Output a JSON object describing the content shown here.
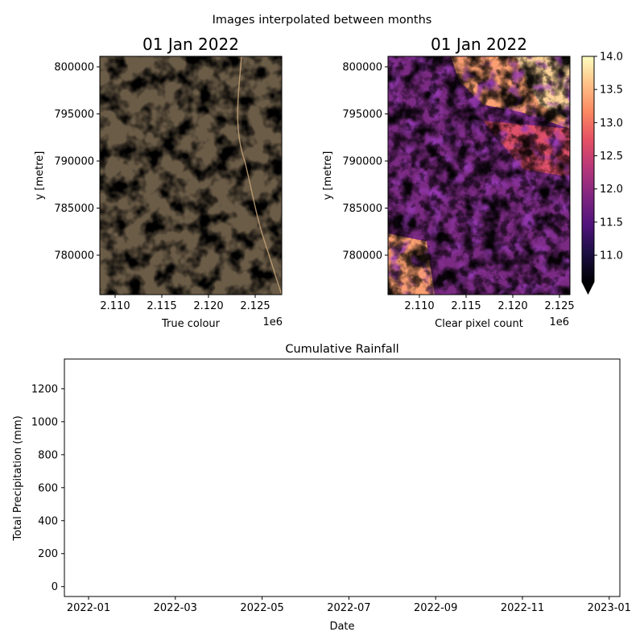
{
  "figure": {
    "suptitle": "Images interpolated between months"
  },
  "chart_data": [
    {
      "type": "image",
      "title": "01 Jan 2022",
      "xlabel": "True colour",
      "ylabel": "y [metre]",
      "x_ticks": [
        "2.110",
        "2.115",
        "2.120",
        "2.125"
      ],
      "x_offset_label": "1e6",
      "y_ticks": [
        "780000",
        "785000",
        "790000",
        "795000",
        "800000"
      ],
      "xlim": [
        2106500,
        2126000
      ],
      "ylim": [
        776000,
        801200
      ],
      "colors": {
        "forest": "#2a3a22",
        "clearing": "#6b5c47",
        "road": "#c8a67a"
      }
    },
    {
      "type": "heatmap",
      "title": "01 Jan 2022",
      "xlabel": "Clear pixel count",
      "ylabel": "y [metre]",
      "x_ticks": [
        "2.110",
        "2.115",
        "2.120",
        "2.125"
      ],
      "x_offset_label": "1e6",
      "y_ticks": [
        "780000",
        "785000",
        "790000",
        "795000",
        "800000"
      ],
      "xlim": [
        2106500,
        2126000
      ],
      "ylim": [
        776000,
        801200
      ],
      "colormap": "magma",
      "colorbar": {
        "ticks": [
          "11.0",
          "11.5",
          "12.0",
          "12.5",
          "13.0",
          "13.5",
          "14.0"
        ],
        "range": [
          10.6,
          14.0
        ],
        "extend": "min"
      }
    },
    {
      "type": "line",
      "title": "Cumulative Rainfall",
      "xlabel": "Date",
      "ylabel": "Total Precipitation (mm)",
      "x_ticks": [
        "2022-01",
        "2022-03",
        "2022-05",
        "2022-07",
        "2022-09",
        "2022-11",
        "2023-01"
      ],
      "y_ticks": [
        "0",
        "200",
        "400",
        "600",
        "800",
        "1000",
        "1200"
      ],
      "ylim": [
        -60,
        1380
      ],
      "series": []
    }
  ]
}
